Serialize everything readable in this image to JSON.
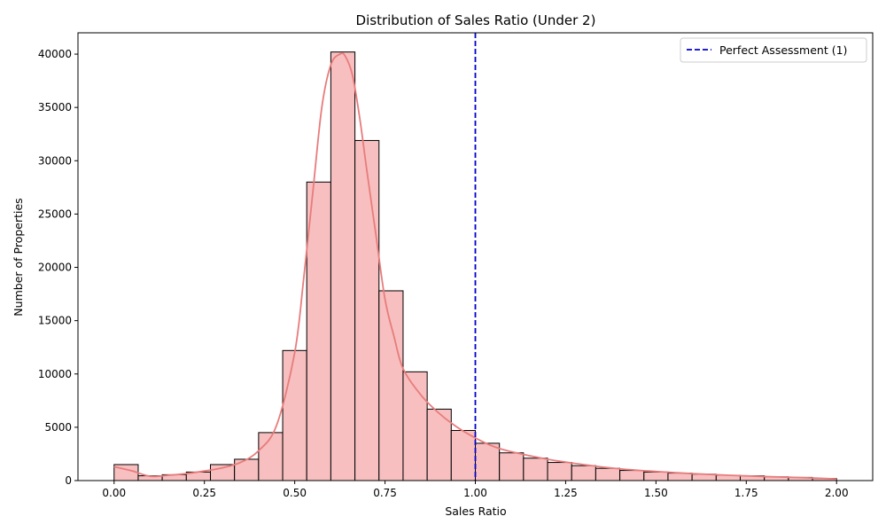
{
  "chart_data": {
    "type": "bar",
    "title": "Distribution of Sales Ratio (Under 2)",
    "xlabel": "Sales Ratio",
    "ylabel": "Number of Properties",
    "xlim": [
      -0.1,
      2.1
    ],
    "ylim": [
      0,
      42000
    ],
    "x_ticks": [
      "0.00",
      "0.25",
      "0.50",
      "0.75",
      "1.00",
      "1.25",
      "1.50",
      "1.75",
      "2.00"
    ],
    "y_ticks": [
      "0",
      "5000",
      "10000",
      "15000",
      "20000",
      "25000",
      "30000",
      "35000",
      "40000"
    ],
    "bin_edges": [
      0,
      0.0667,
      0.1333,
      0.2,
      0.2667,
      0.3333,
      0.4,
      0.4667,
      0.5333,
      0.6,
      0.6667,
      0.7333,
      0.8,
      0.8667,
      0.9333,
      1.0,
      1.0667,
      1.1333,
      1.2,
      1.2667,
      1.3333,
      1.4,
      1.4667,
      1.5333,
      1.6,
      1.6667,
      1.7333,
      1.8,
      1.8667,
      1.9333,
      2.0
    ],
    "values": [
      1500,
      450,
      550,
      800,
      1500,
      2000,
      4500,
      12200,
      28000,
      40200,
      31900,
      17800,
      10200,
      6700,
      4700,
      3500,
      2600,
      2100,
      1700,
      1400,
      1150,
      950,
      800,
      700,
      600,
      500,
      450,
      350,
      300,
      200
    ],
    "kde": {
      "x": [
        0,
        0.05,
        0.1,
        0.15,
        0.2,
        0.25,
        0.3,
        0.35,
        0.4,
        0.45,
        0.5,
        0.525,
        0.55,
        0.575,
        0.6,
        0.625,
        0.64,
        0.66,
        0.68,
        0.7,
        0.725,
        0.75,
        0.775,
        0.8,
        0.85,
        0.9,
        0.95,
        1.0,
        1.05,
        1.1,
        1.2,
        1.3,
        1.4,
        1.5,
        1.6,
        1.7,
        1.8,
        1.9,
        2.0
      ],
      "y": [
        1300,
        900,
        400,
        500,
        650,
        900,
        1200,
        1700,
        2800,
        5200,
        12000,
        19000,
        27000,
        35000,
        39000,
        40000,
        39800,
        38000,
        34000,
        29000,
        23000,
        17000,
        13500,
        10500,
        8000,
        6300,
        5000,
        4000,
        3200,
        2700,
        2000,
        1500,
        1100,
        850,
        650,
        500,
        380,
        280,
        150
      ]
    },
    "reference_line": {
      "x": 1.0,
      "label": "Perfect Assessment (1)",
      "style": "dashed"
    },
    "legend_position": "top-right",
    "grid": false,
    "colors": {
      "bar_fill": "#f7bfbf",
      "bar_edge": "#000000",
      "kde_line": "#e87c7c",
      "reference_line": "#0000cc"
    }
  }
}
